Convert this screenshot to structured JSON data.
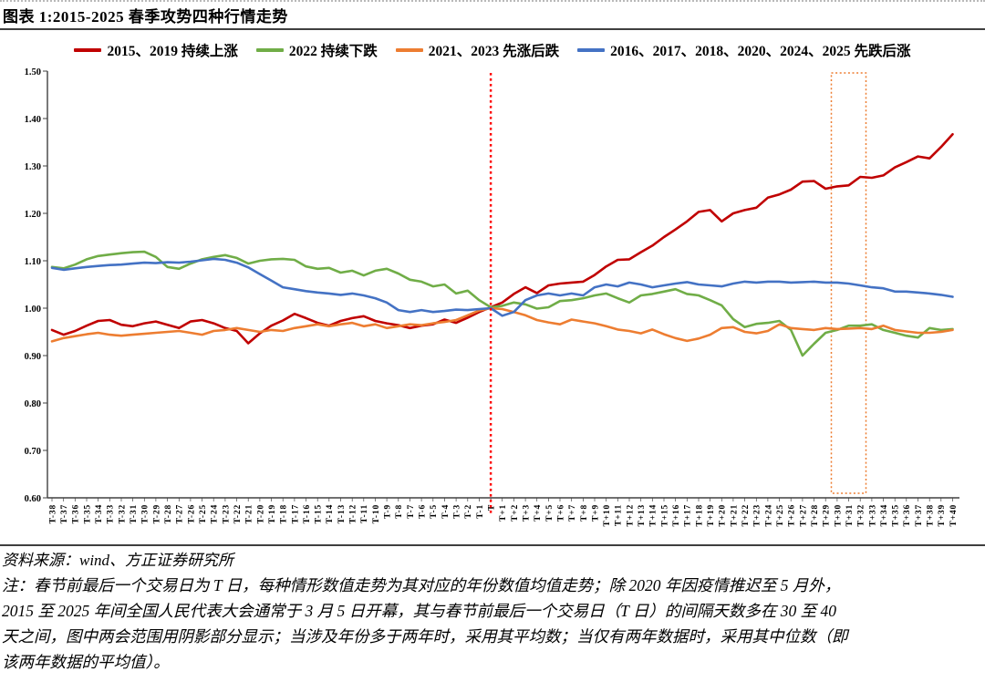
{
  "header": {
    "title": "图表 1:2015-2025 春季攻势四种行情走势"
  },
  "footer": {
    "source": "资料来源：wind、方正证券研究所",
    "note_lines": [
      "注：春节前最后一个交易日为 T 日，每种情形数值走势为其对应的年份数值均值走势；除 2020 年因疫情推迟至 5 月外，",
      "2015 至 2025 年间全国人民代表大会通常于 3 月 5 日开幕，其与春节前最后一个交易日（T 日）的间隔天数多在 30 至 40",
      "天之间，图中两会范围用阴影部分显示；当涉及年份多于两年时，采用其平均数；当仅有两年数据时，采用其中位数（即",
      "该两年数据的平均值）。"
    ]
  },
  "chart_data": {
    "type": "line",
    "title": "2015-2025 春季攻势四种行情走势",
    "ylim": [
      0.6,
      1.5
    ],
    "grid": false,
    "legend_position": "top-center",
    "axis_color": "#404040",
    "y_tick_labels": [
      "1.50",
      "1.40",
      "1.30",
      "1.20",
      "1.10",
      "1.00",
      "0.90",
      "0.80",
      "0.70",
      "0.60"
    ],
    "x_labels": [
      "T-38",
      "T-37",
      "T-36",
      "T-35",
      "T-34",
      "T-33",
      "T-32",
      "T-31",
      "T-30",
      "T-29",
      "T-28",
      "T-27",
      "T-26",
      "T-25",
      "T-24",
      "T-23",
      "T-22",
      "T-21",
      "T-20",
      "T-19",
      "T-18",
      "T-17",
      "T-16",
      "T-15",
      "T-14",
      "T-13",
      "T-12",
      "T-11",
      "T-10",
      "T-9",
      "T-8",
      "T-7",
      "T-6",
      "T-5",
      "T-4",
      "T-3",
      "T-2",
      "T-1",
      "T",
      "T+1",
      "T+2",
      "T+3",
      "T+4",
      "T+5",
      "T+6",
      "T+7",
      "T+8",
      "T+9",
      "T+10",
      "T+11",
      "T+12",
      "T+13",
      "T+14",
      "T+15",
      "T+16",
      "T+17",
      "T+18",
      "T+19",
      "T+20",
      "T+21",
      "T+22",
      "T+23",
      "T+24",
      "T+25",
      "T+26",
      "T+27",
      "T+28",
      "T+29",
      "T+30",
      "T+31",
      "T+32",
      "T+33",
      "T+34",
      "T+35",
      "T+36",
      "T+37",
      "T+38",
      "T+39",
      "T+40"
    ],
    "series": [
      {
        "name": "2015、2019 持续上涨",
        "color": "#C00000",
        "values": [
          0.954,
          0.944,
          0.952,
          0.963,
          0.973,
          0.975,
          0.965,
          0.962,
          0.968,
          0.972,
          0.965,
          0.958,
          0.972,
          0.975,
          0.968,
          0.958,
          0.952,
          0.926,
          0.947,
          0.963,
          0.974,
          0.988,
          0.979,
          0.969,
          0.963,
          0.973,
          0.979,
          0.983,
          0.973,
          0.968,
          0.964,
          0.958,
          0.963,
          0.966,
          0.976,
          0.969,
          0.98,
          0.992,
          1.002,
          1.012,
          1.03,
          1.044,
          1.032,
          1.048,
          1.052,
          1.054,
          1.056,
          1.07,
          1.088,
          1.102,
          1.103,
          1.118,
          1.132,
          1.15,
          1.166,
          1.183,
          1.203,
          1.207,
          1.183,
          1.2,
          1.207,
          1.212,
          1.233,
          1.24,
          1.25,
          1.267,
          1.268,
          1.252,
          1.257,
          1.259,
          1.277,
          1.275,
          1.28,
          1.297,
          1.308,
          1.32,
          1.316,
          1.34,
          1.367
        ]
      },
      {
        "name": "2022 持续下跌",
        "color": "#70AD47",
        "values": [
          1.087,
          1.084,
          1.092,
          1.103,
          1.11,
          1.113,
          1.116,
          1.118,
          1.119,
          1.108,
          1.087,
          1.083,
          1.094,
          1.103,
          1.108,
          1.112,
          1.106,
          1.094,
          1.1,
          1.103,
          1.104,
          1.102,
          1.088,
          1.083,
          1.085,
          1.075,
          1.079,
          1.069,
          1.079,
          1.083,
          1.073,
          1.06,
          1.056,
          1.046,
          1.05,
          1.031,
          1.037,
          1.017,
          1.002,
          1.005,
          1.012,
          1.008,
          0.999,
          1.002,
          1.015,
          1.017,
          1.021,
          1.027,
          1.031,
          1.021,
          1.012,
          1.027,
          1.03,
          1.035,
          1.04,
          1.03,
          1.027,
          1.017,
          1.006,
          0.977,
          0.96,
          0.967,
          0.969,
          0.973,
          0.954,
          0.9,
          0.925,
          0.948,
          0.954,
          0.963,
          0.963,
          0.966,
          0.954,
          0.948,
          0.942,
          0.938,
          0.958,
          0.954,
          0.956
        ]
      },
      {
        "name": "2021、2023 先涨后跌",
        "color": "#ED7D31",
        "values": [
          0.93,
          0.937,
          0.941,
          0.945,
          0.948,
          0.944,
          0.942,
          0.944,
          0.946,
          0.948,
          0.95,
          0.952,
          0.948,
          0.944,
          0.952,
          0.954,
          0.958,
          0.954,
          0.95,
          0.954,
          0.952,
          0.958,
          0.962,
          0.966,
          0.962,
          0.966,
          0.969,
          0.962,
          0.966,
          0.958,
          0.962,
          0.966,
          0.964,
          0.968,
          0.971,
          0.975,
          0.985,
          0.995,
          1.0,
          0.998,
          0.992,
          0.985,
          0.975,
          0.97,
          0.966,
          0.976,
          0.972,
          0.968,
          0.962,
          0.955,
          0.952,
          0.947,
          0.955,
          0.945,
          0.937,
          0.931,
          0.936,
          0.944,
          0.958,
          0.96,
          0.95,
          0.947,
          0.952,
          0.966,
          0.958,
          0.956,
          0.954,
          0.958,
          0.956,
          0.957,
          0.958,
          0.956,
          0.963,
          0.954,
          0.951,
          0.948,
          0.948,
          0.95,
          0.954
        ]
      },
      {
        "name": "2016、2017、2018、2020、2024、2025 先跌后涨",
        "color": "#4472C4",
        "values": [
          1.085,
          1.081,
          1.084,
          1.087,
          1.089,
          1.091,
          1.092,
          1.094,
          1.096,
          1.095,
          1.097,
          1.096,
          1.098,
          1.101,
          1.104,
          1.102,
          1.096,
          1.086,
          1.072,
          1.058,
          1.044,
          1.04,
          1.036,
          1.033,
          1.031,
          1.028,
          1.031,
          1.027,
          1.021,
          1.012,
          0.996,
          0.992,
          0.996,
          0.992,
          0.994,
          0.997,
          0.996,
          0.998,
          1.0,
          0.984,
          0.992,
          1.017,
          1.027,
          1.031,
          1.027,
          1.031,
          1.027,
          1.044,
          1.05,
          1.046,
          1.054,
          1.05,
          1.044,
          1.048,
          1.052,
          1.055,
          1.05,
          1.048,
          1.046,
          1.052,
          1.056,
          1.054,
          1.056,
          1.056,
          1.054,
          1.055,
          1.056,
          1.054,
          1.054,
          1.052,
          1.048,
          1.044,
          1.042,
          1.035,
          1.035,
          1.033,
          1.031,
          1.028,
          1.024
        ]
      }
    ],
    "markers": {
      "t_line": {
        "at_label": "T",
        "color": "#FE0000",
        "style": "dotted"
      },
      "two_sessions_box": {
        "from_label": "T+30",
        "to_label": "T+32",
        "color": "#ED7D31",
        "style": "dotted"
      }
    }
  }
}
